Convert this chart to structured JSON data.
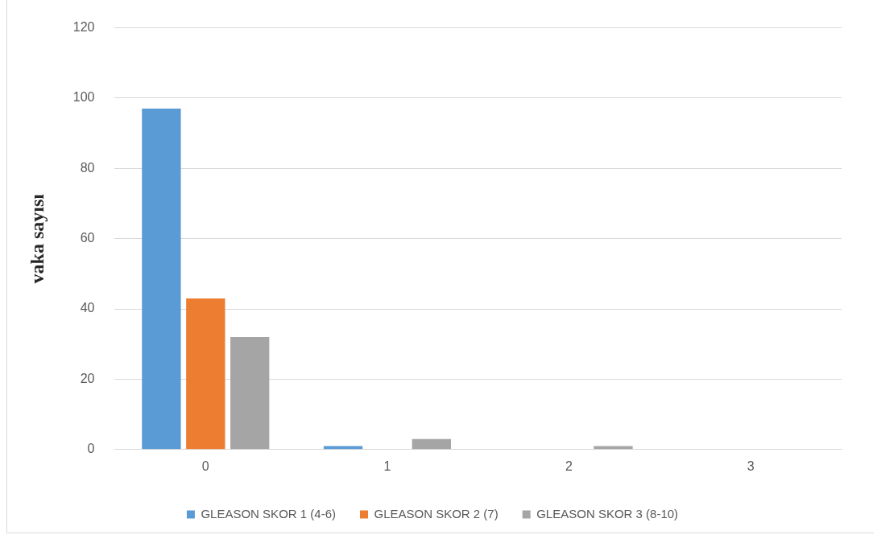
{
  "chart_data": {
    "type": "bar",
    "ylabel": "vaka sayısı",
    "categories": [
      "0",
      "1",
      "2",
      "3"
    ],
    "series": [
      {
        "name": "GLEASON SKOR 1 (4-6)",
        "color": "#5b9bd5",
        "values": [
          97,
          1,
          0,
          0
        ]
      },
      {
        "name": "GLEASON SKOR 2 (7)",
        "color": "#ed7d31",
        "values": [
          43,
          0,
          0,
          0
        ]
      },
      {
        "name": "GLEASON SKOR 3 (8-10)",
        "color": "#a5a5a5",
        "values": [
          32,
          3,
          1,
          0
        ]
      }
    ],
    "ylim": [
      0,
      120
    ],
    "yticks": [
      0,
      20,
      40,
      60,
      80,
      100,
      120
    ],
    "grid": "y",
    "legend": "bottom"
  }
}
